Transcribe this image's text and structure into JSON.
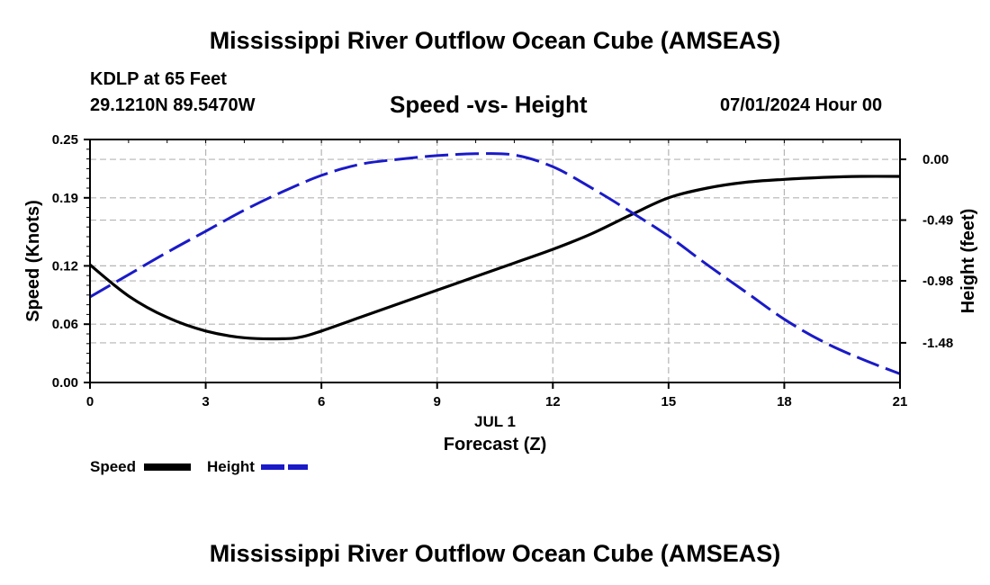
{
  "header": {
    "main_title": "Mississippi River Outflow Ocean Cube (AMSEAS)",
    "station": "KDLP at 65 Feet",
    "coords": "29.1210N  89.5470W",
    "subtitle": "Speed -vs- Height",
    "datetime": "07/01/2024 Hour 00"
  },
  "footer": {
    "title": "Mississippi River Outflow Ocean Cube (AMSEAS)"
  },
  "legend": {
    "speed_label": "Speed",
    "height_label": "Height"
  },
  "colors": {
    "speed": "#000000",
    "height": "#1a1ac8",
    "grid": "#b4b4b4"
  },
  "chart_data": {
    "type": "line",
    "title": "Speed -vs- Height",
    "xlabel": "Forecast (Z)",
    "xlabel_date": "JUL 1",
    "ylabel": "Speed (Knots)",
    "y2label": "Height (feet)",
    "xlim": [
      0,
      21
    ],
    "ylim": [
      0,
      0.25
    ],
    "y2lim": [
      -1.8,
      0.16
    ],
    "xticks": [
      0,
      3,
      6,
      9,
      12,
      15,
      18,
      21
    ],
    "xtick_labels": [
      "0",
      "3",
      "6",
      "9",
      "12",
      "15",
      "18",
      "21"
    ],
    "yticks": [
      0,
      0.06,
      0.12,
      0.19,
      0.25
    ],
    "ytick_labels": [
      "0.00",
      "0.06",
      "0.12",
      "0.19",
      "0.25"
    ],
    "y2ticks": [
      0.0,
      -0.49,
      -0.98,
      -1.48
    ],
    "y2tick_labels": [
      "0.00",
      "-0.49",
      "-0.98",
      "-1.48"
    ],
    "grid": true,
    "series": [
      {
        "name": "Speed",
        "axis": "left",
        "style": "solid",
        "x": [
          0,
          1,
          2,
          3,
          4,
          5,
          5.5,
          6,
          7,
          8,
          9,
          10,
          11,
          12,
          13,
          14,
          15,
          16,
          17,
          18,
          19,
          20,
          21
        ],
        "values": [
          0.121,
          0.089,
          0.067,
          0.053,
          0.046,
          0.045,
          0.047,
          0.053,
          0.067,
          0.081,
          0.095,
          0.109,
          0.123,
          0.137,
          0.153,
          0.172,
          0.19,
          0.2,
          0.206,
          0.209,
          0.211,
          0.212,
          0.212
        ]
      },
      {
        "name": "Height",
        "axis": "right",
        "style": "dashed",
        "x": [
          0,
          1,
          2,
          3,
          4,
          5,
          6,
          7,
          8,
          9,
          10,
          11,
          12,
          13,
          14,
          15,
          16,
          17,
          18,
          19,
          20,
          21
        ],
        "values": [
          -1.11,
          -0.93,
          -0.75,
          -0.58,
          -0.41,
          -0.26,
          -0.13,
          -0.04,
          0.0,
          0.03,
          0.045,
          0.035,
          -0.06,
          -0.23,
          -0.42,
          -0.62,
          -0.85,
          -1.07,
          -1.29,
          -1.47,
          -1.61,
          -1.73
        ]
      }
    ]
  }
}
